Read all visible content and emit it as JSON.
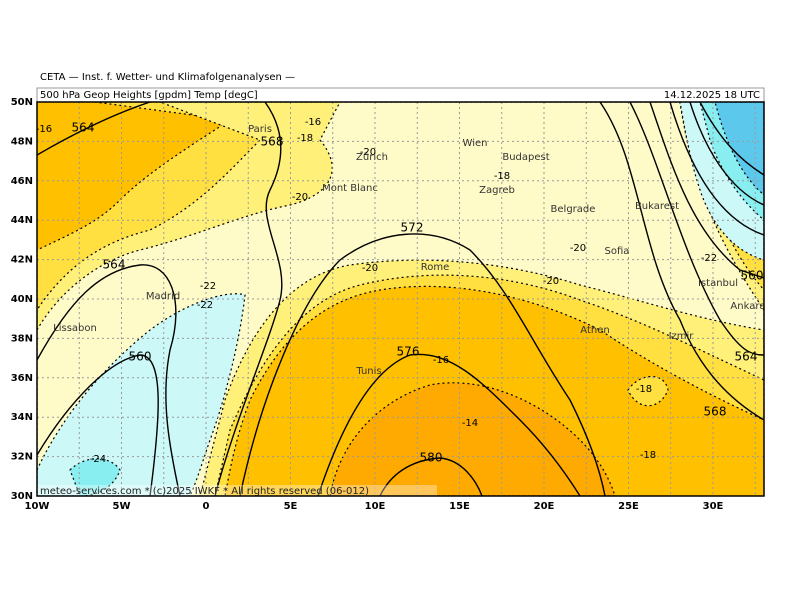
{
  "header": {
    "org": "CETA — Inst. f. Wetter- und Klimafolgenanalysen —",
    "title": "500 hPa Geop Heights [gpdm] Temp [degC]",
    "time": "14.12.2025 18 UTC"
  },
  "lat_labels": [
    "50N",
    "48N",
    "46N",
    "44N",
    "42N",
    "40N",
    "38N",
    "36N",
    "34N",
    "32N",
    "30N"
  ],
  "lon_labels": [
    "10W",
    "5W",
    "0",
    "5E",
    "10E",
    "15E",
    "20E",
    "25E",
    "30E"
  ],
  "cities": [
    "Paris",
    "Zürich",
    "Mont Blanc",
    "Wien",
    "Budapest",
    "Zagreb",
    "Belgrade",
    "Bukarest",
    "Sofia",
    "Rome",
    "Madrid",
    "Lissabon",
    "Istanbul",
    "Ankara",
    "Athen",
    "Izmir",
    "Tunis"
  ],
  "height_labels": [
    "564",
    "568",
    "572",
    "564",
    "560",
    "576",
    "580",
    "560",
    "564",
    "568"
  ],
  "temp_labels": [
    "-16",
    "-16",
    "-18",
    "-20",
    "-20",
    "-18",
    "-20",
    "-22",
    "-22",
    "-20",
    "-20",
    "-22",
    "-16",
    "-14",
    "-18",
    "-18",
    "-24"
  ],
  "footer": "meteo-services.com * (c)2025 IWKF * All rights reserved (06-012)"
}
